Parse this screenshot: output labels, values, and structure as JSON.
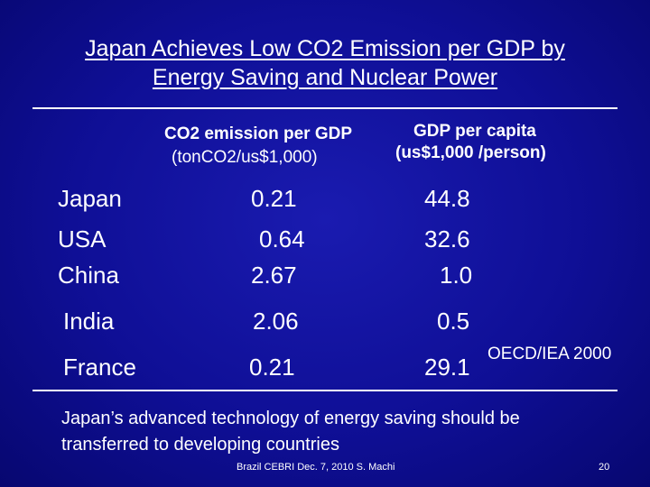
{
  "slide": {
    "title_line1": "Japan Achieves Low CO2 Emission per GDP by",
    "title_line2": "Energy Saving and Nuclear Power"
  },
  "table": {
    "col1_header_line1": "CO2 emission per GDP",
    "col1_header_line2": "(tonCO2/us$1,000)",
    "col2_header_line1": "GDP per capita",
    "col2_header_line2": "(us$1,000 /person)",
    "rows": [
      {
        "country": "Japan",
        "co2": "0.21",
        "gdp": "44.8"
      },
      {
        "country": "USA",
        "co2": "0.64",
        "gdp": "32.6"
      },
      {
        "country": "China",
        "co2": "2.67",
        "gdp": "1.0"
      },
      {
        "country": "India",
        "co2": "2.06",
        "gdp": "0.5"
      },
      {
        "country": "France",
        "co2": "0.21",
        "gdp": "29.1"
      }
    ],
    "source": "OECD/IEA 2000"
  },
  "conclusion_line1": "Japan’s advanced technology of energy saving should be",
  "conclusion_line2": "transferred  to developing countries",
  "footer": {
    "credit": "Brazil CEBRI Dec. 7, 2010  S. Machi",
    "page_number": "20"
  }
}
